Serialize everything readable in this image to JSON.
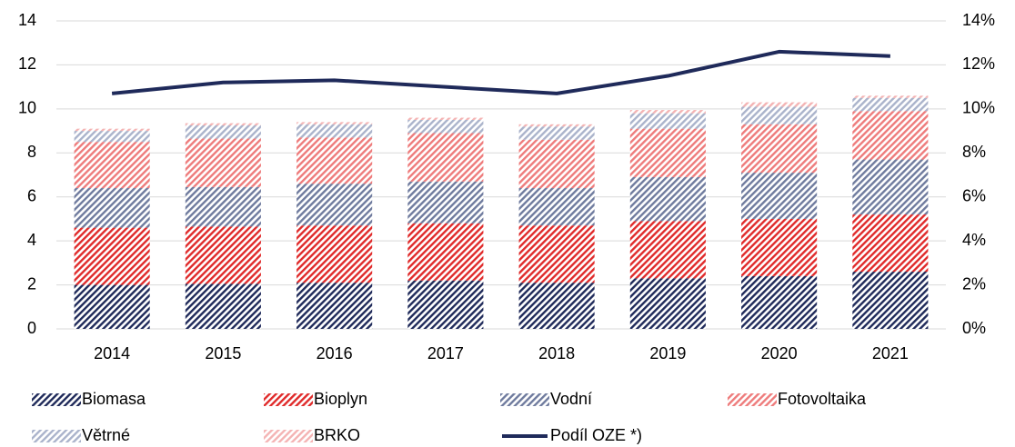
{
  "chart_data": {
    "type": "bar",
    "stacked": true,
    "categories": [
      "2014",
      "2015",
      "2016",
      "2017",
      "2018",
      "2019",
      "2020",
      "2021"
    ],
    "series": [
      {
        "name": "Biomasa",
        "type": "bar",
        "hatch": true,
        "color": "#1f2a5a",
        "values": [
          2.0,
          2.05,
          2.1,
          2.2,
          2.1,
          2.3,
          2.4,
          2.6
        ]
      },
      {
        "name": "Bioplyn",
        "type": "bar",
        "hatch": true,
        "color": "#e02a2a",
        "values": [
          2.6,
          2.6,
          2.6,
          2.6,
          2.6,
          2.6,
          2.6,
          2.6
        ]
      },
      {
        "name": "Vodní",
        "type": "bar",
        "hatch": true,
        "color": "#6f7b9e",
        "values": [
          1.8,
          1.8,
          1.9,
          1.9,
          1.7,
          2.0,
          2.1,
          2.5
        ]
      },
      {
        "name": "Fotovoltaika",
        "type": "bar",
        "hatch": true,
        "color": "#ee7b7b",
        "values": [
          2.1,
          2.2,
          2.1,
          2.2,
          2.2,
          2.2,
          2.2,
          2.2
        ]
      },
      {
        "name": "Větrné",
        "type": "bar",
        "hatch": true,
        "color": "#aab3cb",
        "values": [
          0.5,
          0.6,
          0.6,
          0.6,
          0.6,
          0.7,
          0.8,
          0.6
        ]
      },
      {
        "name": "BRKO",
        "type": "bar",
        "hatch": true,
        "color": "#f4b3b3",
        "values": [
          0.1,
          0.1,
          0.1,
          0.1,
          0.1,
          0.15,
          0.2,
          0.1
        ]
      },
      {
        "name": "Podíl OZE *)",
        "type": "line",
        "axis": "y2",
        "color": "#1f2a5a",
        "values": [
          10.7,
          11.2,
          11.3,
          11.0,
          10.7,
          11.5,
          12.6,
          12.4
        ]
      }
    ],
    "ylim": [
      0,
      14
    ],
    "yticks": [
      0,
      2,
      4,
      6,
      8,
      10,
      12,
      14
    ],
    "y2lim": [
      0,
      14
    ],
    "y2ticks": [
      {
        "value": 0,
        "label": "0%"
      },
      {
        "value": 2,
        "label": "2%"
      },
      {
        "value": 4,
        "label": "4%"
      },
      {
        "value": 6,
        "label": "6%"
      },
      {
        "value": 8,
        "label": "8%"
      },
      {
        "value": 10,
        "label": "10%"
      },
      {
        "value": 12,
        "label": "12%"
      },
      {
        "value": 14,
        "label": "14%"
      }
    ],
    "grid": true,
    "legend": "bottom"
  }
}
